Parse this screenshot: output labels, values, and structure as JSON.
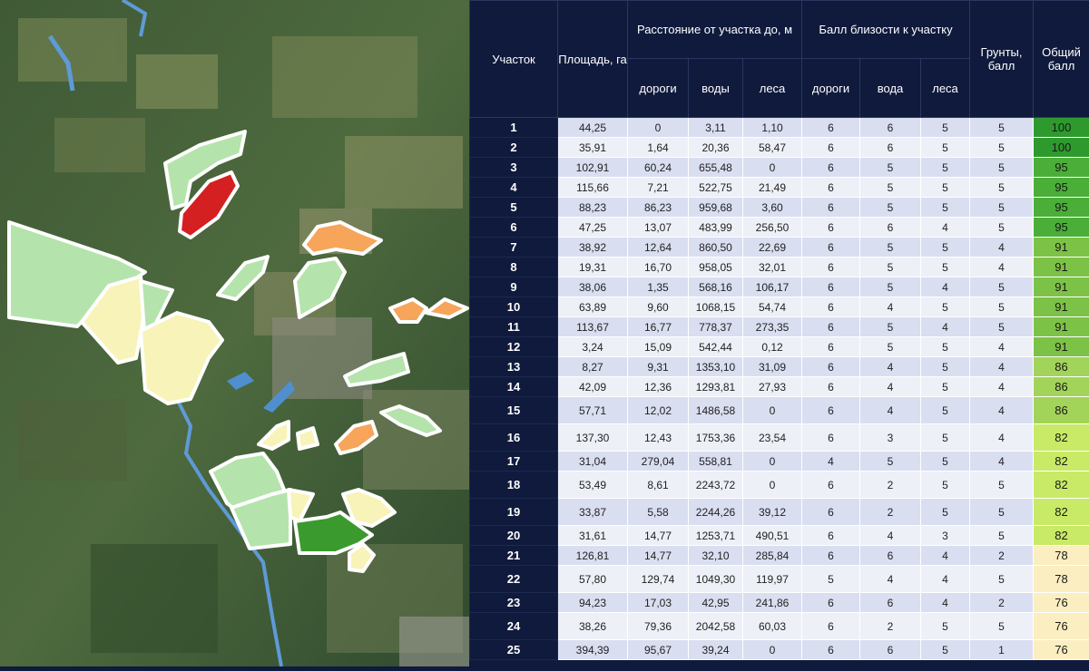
{
  "table": {
    "headers": {
      "plot": "Участок",
      "area": "Площадь, га",
      "distance_group": "Расстояние от участка до, м",
      "proximity_group": "Балл близости к участку",
      "soil": "Грунты, балл",
      "total": "Общий балл",
      "dist_road": "дороги",
      "dist_water": "воды",
      "dist_forest": "леса",
      "prox_road": "дороги",
      "prox_water": "вода",
      "prox_forest": "леса"
    },
    "rows": [
      {
        "id": "1",
        "area": "44,25",
        "d_road": "0",
        "d_water": "3,11",
        "d_forest": "1,10",
        "p_road": "6",
        "p_water": "6",
        "p_forest": "5",
        "soil": "5",
        "total": "100",
        "color": "#2e9a2e"
      },
      {
        "id": "2",
        "area": "35,91",
        "d_road": "1,64",
        "d_water": "20,36",
        "d_forest": "58,47",
        "p_road": "6",
        "p_water": "6",
        "p_forest": "5",
        "soil": "5",
        "total": "100",
        "color": "#2e9a2e"
      },
      {
        "id": "3",
        "area": "102,91",
        "d_road": "60,24",
        "d_water": "655,48",
        "d_forest": "0",
        "p_road": "6",
        "p_water": "5",
        "p_forest": "5",
        "soil": "5",
        "total": "95",
        "color": "#4aae38"
      },
      {
        "id": "4",
        "area": "115,66",
        "d_road": "7,21",
        "d_water": "522,75",
        "d_forest": "21,49",
        "p_road": "6",
        "p_water": "5",
        "p_forest": "5",
        "soil": "5",
        "total": "95",
        "color": "#4aae38"
      },
      {
        "id": "5",
        "area": "88,23",
        "d_road": "86,23",
        "d_water": "959,68",
        "d_forest": "3,60",
        "p_road": "6",
        "p_water": "5",
        "p_forest": "5",
        "soil": "5",
        "total": "95",
        "color": "#4aae38"
      },
      {
        "id": "6",
        "area": "47,25",
        "d_road": "13,07",
        "d_water": "483,99",
        "d_forest": "256,50",
        "p_road": "6",
        "p_water": "6",
        "p_forest": "4",
        "soil": "5",
        "total": "95",
        "color": "#4aae38"
      },
      {
        "id": "7",
        "area": "38,92",
        "d_road": "12,64",
        "d_water": "860,50",
        "d_forest": "22,69",
        "p_road": "6",
        "p_water": "5",
        "p_forest": "5",
        "soil": "4",
        "total": "91",
        "color": "#7cc246"
      },
      {
        "id": "8",
        "area": "19,31",
        "d_road": "16,70",
        "d_water": "958,05",
        "d_forest": "32,01",
        "p_road": "6",
        "p_water": "5",
        "p_forest": "5",
        "soil": "4",
        "total": "91",
        "color": "#7cc246"
      },
      {
        "id": "9",
        "area": "38,06",
        "d_road": "1,35",
        "d_water": "568,16",
        "d_forest": "106,17",
        "p_road": "6",
        "p_water": "5",
        "p_forest": "4",
        "soil": "5",
        "total": "91",
        "color": "#7cc246"
      },
      {
        "id": "10",
        "area": "63,89",
        "d_road": "9,60",
        "d_water": "1068,15",
        "d_forest": "54,74",
        "p_road": "6",
        "p_water": "4",
        "p_forest": "5",
        "soil": "5",
        "total": "91",
        "color": "#7cc246"
      },
      {
        "id": "11",
        "area": "113,67",
        "d_road": "16,77",
        "d_water": "778,37",
        "d_forest": "273,35",
        "p_road": "6",
        "p_water": "5",
        "p_forest": "4",
        "soil": "5",
        "total": "91",
        "color": "#7cc246"
      },
      {
        "id": "12",
        "area": "3,24",
        "d_road": "15,09",
        "d_water": "542,44",
        "d_forest": "0,12",
        "p_road": "6",
        "p_water": "5",
        "p_forest": "5",
        "soil": "4",
        "total": "91",
        "color": "#7cc246"
      },
      {
        "id": "13",
        "area": "8,27",
        "d_road": "9,31",
        "d_water": "1353,10",
        "d_forest": "31,09",
        "p_road": "6",
        "p_water": "4",
        "p_forest": "5",
        "soil": "4",
        "total": "86",
        "color": "#a3d45a"
      },
      {
        "id": "14",
        "area": "42,09",
        "d_road": "12,36",
        "d_water": "1293,81",
        "d_forest": "27,93",
        "p_road": "6",
        "p_water": "4",
        "p_forest": "5",
        "soil": "4",
        "total": "86",
        "color": "#a3d45a"
      },
      {
        "id": "15",
        "area": "57,71",
        "d_road": "12,02",
        "d_water": "1486,58",
        "d_forest": "0",
        "p_road": "6",
        "p_water": "4",
        "p_forest": "5",
        "soil": "4",
        "total": "86",
        "color": "#a3d45a"
      },
      {
        "id": "16",
        "area": "137,30",
        "d_road": "12,43",
        "d_water": "1753,36",
        "d_forest": "23,54",
        "p_road": "6",
        "p_water": "3",
        "p_forest": "5",
        "soil": "4",
        "total": "82",
        "color": "#c8ea66"
      },
      {
        "id": "17",
        "area": "31,04",
        "d_road": "279,04",
        "d_water": "558,81",
        "d_forest": "0",
        "p_road": "4",
        "p_water": "5",
        "p_forest": "5",
        "soil": "4",
        "total": "82",
        "color": "#c8ea66"
      },
      {
        "id": "18",
        "area": "53,49",
        "d_road": "8,61",
        "d_water": "2243,72",
        "d_forest": "0",
        "p_road": "6",
        "p_water": "2",
        "p_forest": "5",
        "soil": "5",
        "total": "82",
        "color": "#c8ea66"
      },
      {
        "id": "19",
        "area": "33,87",
        "d_road": "5,58",
        "d_water": "2244,26",
        "d_forest": "39,12",
        "p_road": "6",
        "p_water": "2",
        "p_forest": "5",
        "soil": "5",
        "total": "82",
        "color": "#c8ea66"
      },
      {
        "id": "20",
        "area": "31,61",
        "d_road": "14,77",
        "d_water": "1253,71",
        "d_forest": "490,51",
        "p_road": "6",
        "p_water": "4",
        "p_forest": "3",
        "soil": "5",
        "total": "82",
        "color": "#c8ea66"
      },
      {
        "id": "21",
        "area": "126,81",
        "d_road": "14,77",
        "d_water": "32,10",
        "d_forest": "285,84",
        "p_road": "6",
        "p_water": "6",
        "p_forest": "4",
        "soil": "2",
        "total": "78",
        "color": "#fbeec0"
      },
      {
        "id": "22",
        "area": "57,80",
        "d_road": "129,74",
        "d_water": "1049,30",
        "d_forest": "119,97",
        "p_road": "5",
        "p_water": "4",
        "p_forest": "4",
        "soil": "5",
        "total": "78",
        "color": "#fbeec0"
      },
      {
        "id": "23",
        "area": "94,23",
        "d_road": "17,03",
        "d_water": "42,95",
        "d_forest": "241,86",
        "p_road": "6",
        "p_water": "6",
        "p_forest": "4",
        "soil": "2",
        "total": "76",
        "color": "#fbeec0"
      },
      {
        "id": "24",
        "area": "38,26",
        "d_road": "79,36",
        "d_water": "2042,58",
        "d_forest": "60,03",
        "p_road": "6",
        "p_water": "2",
        "p_forest": "5",
        "soil": "5",
        "total": "76",
        "color": "#fbeec0"
      },
      {
        "id": "25",
        "area": "394,39",
        "d_road": "95,67",
        "d_water": "39,24",
        "d_forest": "0",
        "p_road": "6",
        "p_water": "6",
        "p_forest": "5",
        "soil": "1",
        "total": "76",
        "color": "#fbeec0"
      }
    ]
  },
  "map": {
    "parcel_colors": {
      "dark_green": "#3b9a2e",
      "light_green": "#b5e3ac",
      "pale_yellow": "#f8f3b8",
      "orange": "#f6a55a",
      "red": "#d42020"
    }
  }
}
